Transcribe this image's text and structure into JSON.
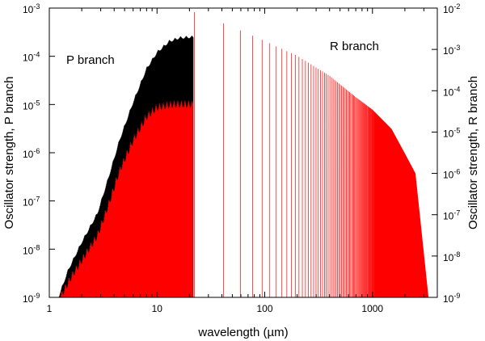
{
  "chart_data": {
    "type": "line",
    "xscale": "log",
    "yscale": "log",
    "xlabel": "wavelength (µm)",
    "ylabel_left": "Oscillator strength, P branch",
    "ylabel_right": "Oscillator strength, R branch",
    "xlim": [
      1,
      4000
    ],
    "ylim_left": [
      1e-09,
      0.001
    ],
    "ylim_right": [
      1e-09,
      0.01
    ],
    "x_ticks": [
      {
        "value": 1,
        "label": "1"
      },
      {
        "value": 10,
        "label": "10"
      },
      {
        "value": 100,
        "label": "100"
      },
      {
        "value": 1000,
        "label": "1000"
      }
    ],
    "y_left_ticks": [
      {
        "value": 1e-09,
        "base": "10",
        "exp": "-9"
      },
      {
        "value": 1e-08,
        "base": "10",
        "exp": "-8"
      },
      {
        "value": 1e-07,
        "base": "10",
        "exp": "-7"
      },
      {
        "value": 1e-06,
        "base": "10",
        "exp": "-6"
      },
      {
        "value": 1e-05,
        "base": "10",
        "exp": "-5"
      },
      {
        "value": 0.0001,
        "base": "10",
        "exp": "-4"
      },
      {
        "value": 0.001,
        "base": "10",
        "exp": "-3"
      }
    ],
    "y_right_ticks": [
      {
        "value": 1e-09,
        "base": "10",
        "exp": "-9"
      },
      {
        "value": 1e-08,
        "base": "10",
        "exp": "-8"
      },
      {
        "value": 1e-07,
        "base": "10",
        "exp": "-7"
      },
      {
        "value": 1e-06,
        "base": "10",
        "exp": "-6"
      },
      {
        "value": 1e-05,
        "base": "10",
        "exp": "-5"
      },
      {
        "value": 0.0001,
        "base": "10",
        "exp": "-4"
      },
      {
        "value": 0.001,
        "base": "10",
        "exp": "-3"
      },
      {
        "value": 0.01,
        "base": "10",
        "exp": "-2"
      }
    ],
    "annotations": [
      {
        "text": "P branch",
        "color": "#000000"
      },
      {
        "text": "R branch",
        "color": "#ff0000"
      }
    ],
    "series": [
      {
        "name": "P branch",
        "axis": "left",
        "color": "#000000",
        "envelope": [
          [
            1.2,
            1e-09
          ],
          [
            1.5,
            4e-09
          ],
          [
            2.0,
            1.5e-08
          ],
          [
            2.8,
            6e-08
          ],
          [
            3.5,
            3e-07
          ],
          [
            4.5,
            2e-06
          ],
          [
            6.0,
            1.2e-05
          ],
          [
            8.0,
            6e-05
          ],
          [
            10.0,
            0.00013
          ],
          [
            13.0,
            0.00022
          ],
          [
            16.0,
            0.00026
          ],
          [
            20.0,
            0.00027
          ],
          [
            21.5,
            0.00027
          ]
        ],
        "x_end": 21.8
      },
      {
        "name": "R branch",
        "axis": "right",
        "color": "#ff0000",
        "envelope_short": [
          [
            1.2,
            1e-09
          ],
          [
            1.6,
            4e-09
          ],
          [
            2.0,
            1e-08
          ],
          [
            2.8,
            4e-08
          ],
          [
            3.5,
            2e-07
          ],
          [
            4.5,
            1.5e-06
          ],
          [
            6.0,
            8e-06
          ],
          [
            8.0,
            3e-05
          ],
          [
            10.0,
            5e-05
          ],
          [
            14.0,
            6e-05
          ],
          [
            20.0,
            6e-05
          ],
          [
            21.5,
            6e-05
          ]
        ],
        "envelope_long": [
          [
            22.5,
            0.008
          ],
          [
            30,
            0.006
          ],
          [
            50,
            0.0035
          ],
          [
            100,
            0.0016
          ],
          [
            200,
            0.0007
          ],
          [
            400,
            0.00023
          ],
          [
            700,
            7e-05
          ],
          [
            1000,
            3.5e-05
          ],
          [
            1500,
            1.2e-05
          ],
          [
            2000,
            3e-06
          ],
          [
            2500,
            1e-06
          ],
          [
            3300,
            1e-09
          ]
        ],
        "x_end": 3300
      }
    ]
  }
}
